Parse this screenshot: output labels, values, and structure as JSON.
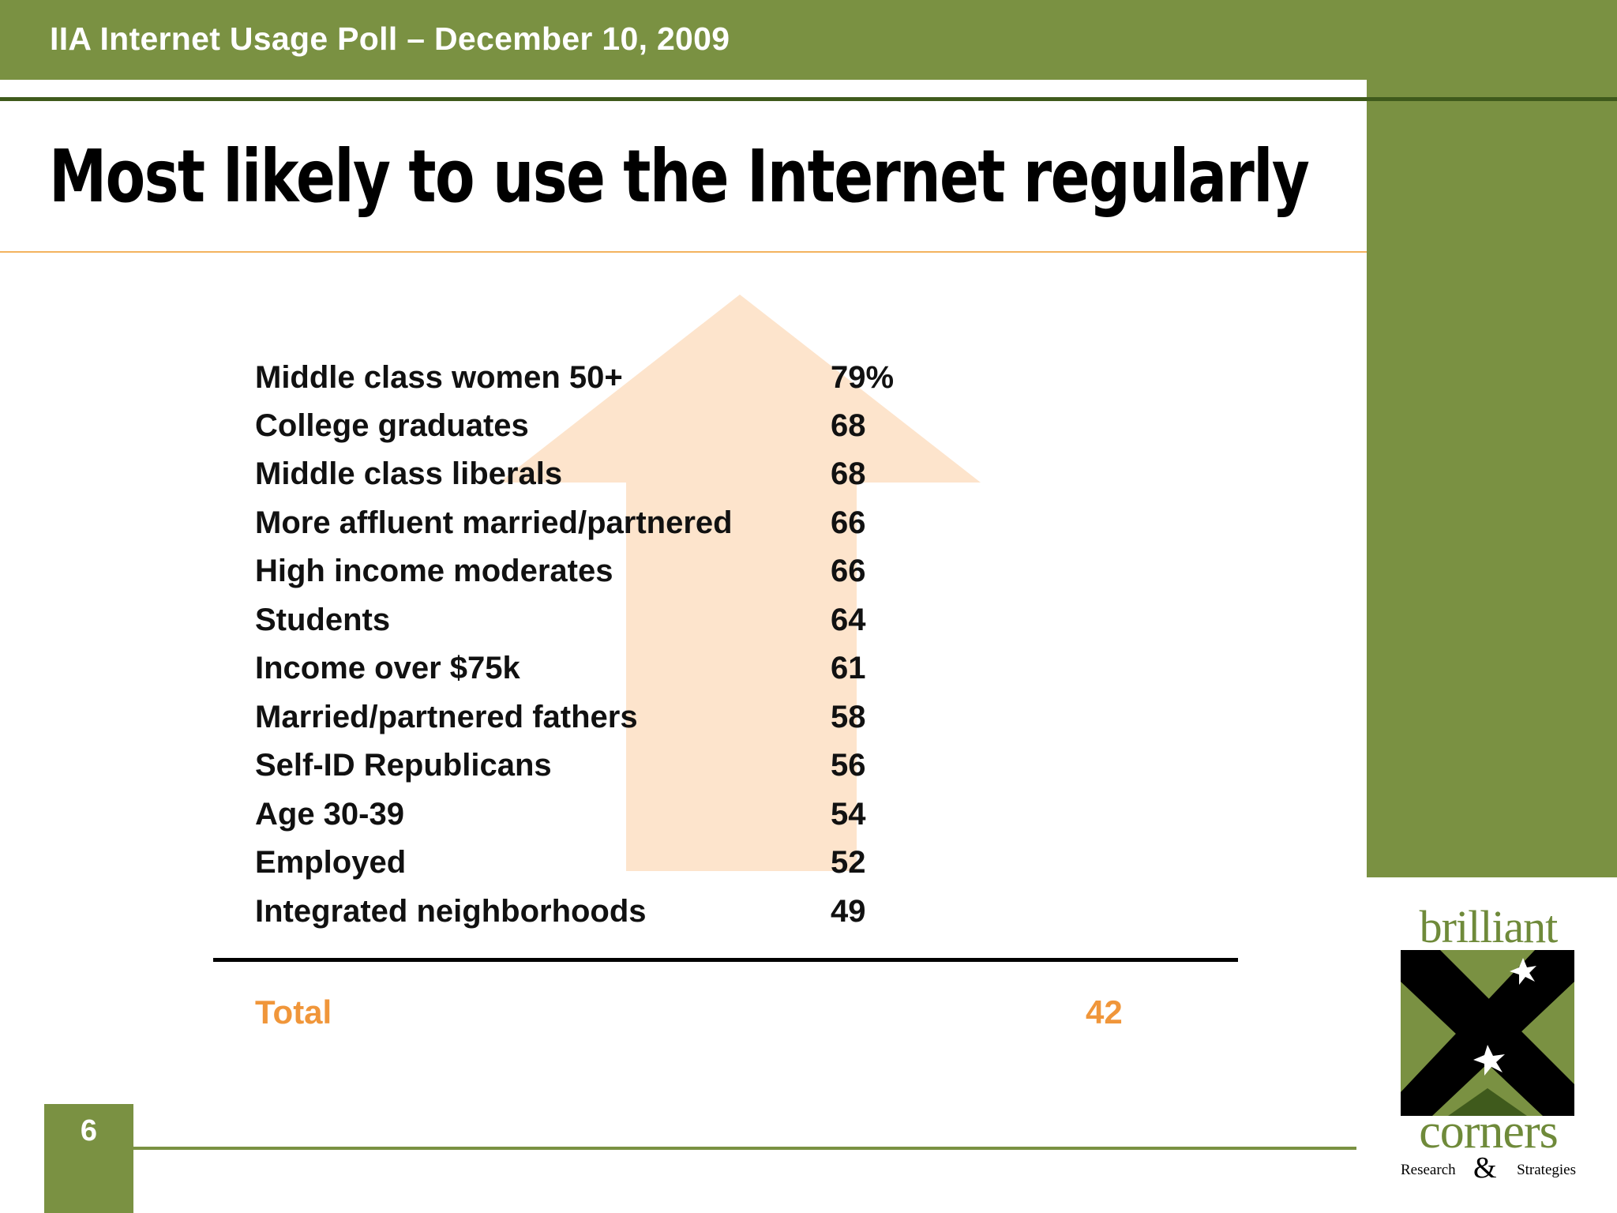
{
  "header": {
    "title": "IIA Internet Usage Poll – December 10, 2009"
  },
  "slide": {
    "title": "Most likely to use the Internet regularly"
  },
  "rows": [
    {
      "label": "Middle class women 50+",
      "value": "79%"
    },
    {
      "label": "College graduates",
      "value": "68"
    },
    {
      "label": "Middle class liberals",
      "value": "68"
    },
    {
      "label": "More affluent married/partnered",
      "value": "66"
    },
    {
      "label": "High income moderates",
      "value": "66"
    },
    {
      "label": "Students",
      "value": "64"
    },
    {
      "label": "Income over $75k",
      "value": "61"
    },
    {
      "label": "Married/partnered fathers",
      "value": "58"
    },
    {
      "label": "Self-ID Republicans",
      "value": "56"
    },
    {
      "label": "Age 30-39",
      "value": "54"
    },
    {
      "label": "Employed",
      "value": "52"
    },
    {
      "label": "Integrated neighborhoods",
      "value": "49"
    }
  ],
  "total": {
    "label": "Total",
    "value": "42"
  },
  "page_number": "6",
  "logo": {
    "top": "brilliant",
    "bottom": "corners",
    "sub_left": "Research",
    "sub_amp": "&",
    "sub_right": "Strategies"
  },
  "colors": {
    "accent_green": "#7a9142",
    "dark_green": "#3f5a1c",
    "orange": "#f0963a",
    "arrow_fill": "#fde4cc"
  },
  "icons": {
    "arrow": "up-arrow-icon"
  }
}
